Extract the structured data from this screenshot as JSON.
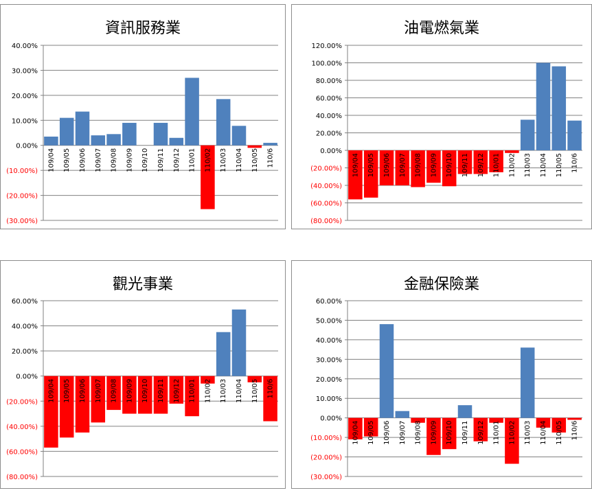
{
  "chart_data": [
    {
      "type": "bar",
      "title": "資訊服務業",
      "categories": [
        "109/04",
        "109/05",
        "109/06",
        "109/07",
        "109/08",
        "109/09",
        "109/10",
        "109/11",
        "109/12",
        "110/01",
        "110/02",
        "110/03",
        "110/04",
        "110/05",
        "110/6"
      ],
      "values": [
        3.5,
        11.0,
        13.5,
        4.0,
        4.5,
        9.0,
        0.0,
        9.0,
        3.0,
        27.0,
        -25.5,
        18.5,
        7.8,
        -1.0,
        1.0
      ],
      "ylim": [
        -30,
        40
      ],
      "yticks": [
        40,
        30,
        20,
        10,
        0,
        -10,
        -20,
        -30
      ],
      "ytick_labels": [
        "40.00%",
        "30.00%",
        "20.00%",
        "10.00%",
        "0.00%",
        "(10.00%)",
        "(20.00%)",
        "(30.00%)"
      ]
    },
    {
      "type": "bar",
      "title": "油電燃氣業",
      "categories": [
        "109/04",
        "109/05",
        "109/06",
        "109/07",
        "109/08",
        "109/09",
        "109/10",
        "109/11",
        "109/12",
        "110/01",
        "110/02",
        "110/03",
        "110/04",
        "110/05",
        "110/6"
      ],
      "values": [
        -56,
        -54,
        -40,
        -40,
        -42,
        -37,
        -41,
        -27,
        -27,
        -25,
        -3,
        35,
        100,
        96,
        34
      ],
      "ylim": [
        -80,
        120
      ],
      "yticks": [
        120,
        100,
        80,
        60,
        40,
        20,
        0,
        -20,
        -40,
        -60,
        -80
      ],
      "ytick_labels": [
        "120.00%",
        "100.00%",
        "80.00%",
        "60.00%",
        "40.00%",
        "20.00%",
        "0.00%",
        "(20.00%)",
        "(40.00%)",
        "(60.00%)",
        "(80.00%)"
      ]
    },
    {
      "type": "bar",
      "title": "觀光事業",
      "categories": [
        "109/04",
        "109/05",
        "109/06",
        "109/07",
        "109/08",
        "109/09",
        "109/10",
        "109/11",
        "109/12",
        "110/01",
        "110/02",
        "110/03",
        "110/04",
        "110/05",
        "110/6"
      ],
      "values": [
        -57,
        -49,
        -45,
        -37,
        -27,
        -30,
        -30,
        -30,
        -22,
        -32,
        -6,
        35,
        53,
        -5,
        -36
      ],
      "ylim": [
        -80,
        60
      ],
      "yticks": [
        60,
        40,
        20,
        0,
        -20,
        -40,
        -60,
        -80
      ],
      "ytick_labels": [
        "60.00%",
        "40.00%",
        "20.00%",
        "0.00%",
        "(20.00%)",
        "(40.00%)",
        "(60.00%)",
        "(80.00%)"
      ]
    },
    {
      "type": "bar",
      "title": "金融保險業",
      "categories": [
        "109/04",
        "109/05",
        "109/06",
        "109/07",
        "109/08",
        "109/09",
        "109/10",
        "109/11",
        "109/12",
        "110/01",
        "110/02",
        "110/03",
        "110/04",
        "110/05",
        "110/6"
      ],
      "values": [
        -11,
        -9.5,
        48,
        3.5,
        -2.5,
        -19,
        -16,
        6.5,
        -12,
        -2.5,
        -23.5,
        36,
        -5,
        -7.5,
        -1
      ],
      "ylim": [
        -30,
        60
      ],
      "yticks": [
        60,
        50,
        40,
        30,
        20,
        10,
        0,
        -10,
        -20,
        -30
      ],
      "ytick_labels": [
        "60.00%",
        "50.00%",
        "40.00%",
        "30.00%",
        "20.00%",
        "10.00%",
        "0.00%",
        "(10.00%)",
        "(20.00%)",
        "(30.00%)"
      ]
    }
  ],
  "colors": {
    "positive": "#4f81bd",
    "negative": "#ff0000",
    "axis_text_negative": "#ff0000",
    "grid": "#808080"
  }
}
